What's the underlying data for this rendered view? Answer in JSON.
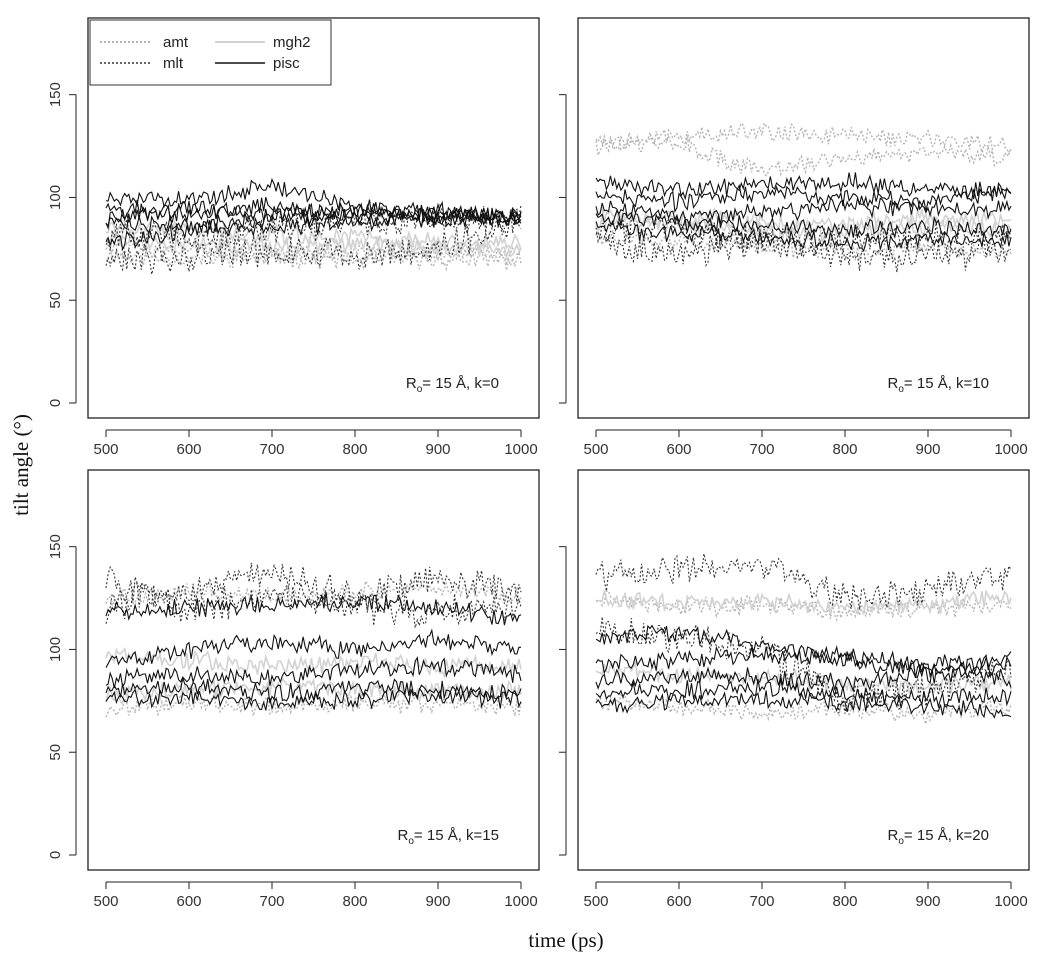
{
  "figure": {
    "ylabel": "tilt angle (°)",
    "xlabel": "time (ps)"
  },
  "legend": {
    "items": [
      {
        "label": "amt",
        "color": "#b4b4b4",
        "style": "dotted"
      },
      {
        "label": "mgh2",
        "color": "#d2d2d2",
        "style": "solid"
      },
      {
        "label": "mlt",
        "color": "#333333",
        "style": "dotted"
      },
      {
        "label": "pisc",
        "color": "#111111",
        "style": "solid"
      }
    ]
  },
  "chart_data": [
    {
      "type": "line",
      "panel": "top-left",
      "annotation": {
        "r": "R",
        "sub": "o",
        "rest": "= 15 Å, k=0"
      },
      "xlim": [
        500,
        1000
      ],
      "ylim": [
        0,
        180
      ],
      "xticks": [
        "500",
        "600",
        "700",
        "800",
        "900",
        "1000"
      ],
      "yticks": [
        "0",
        "50",
        "100",
        "150"
      ],
      "series": [
        {
          "group": "amt",
          "x": [
            500,
            600,
            700,
            800,
            900,
            1000
          ],
          "y": [
            72,
            70,
            71,
            69,
            70,
            69
          ]
        },
        {
          "group": "amt",
          "x": [
            500,
            600,
            700,
            800,
            900,
            1000
          ],
          "y": [
            76,
            75,
            72,
            74,
            73,
            72
          ]
        },
        {
          "group": "mgh2",
          "x": [
            500,
            600,
            700,
            800,
            900,
            1000
          ],
          "y": [
            80,
            78,
            76,
            77,
            75,
            74
          ]
        },
        {
          "group": "mgh2",
          "x": [
            500,
            600,
            700,
            800,
            900,
            1000
          ],
          "y": [
            85,
            84,
            82,
            80,
            79,
            78
          ]
        },
        {
          "group": "mlt",
          "x": [
            500,
            600,
            700,
            800,
            900,
            1000
          ],
          "y": [
            68,
            72,
            74,
            72,
            75,
            92
          ]
        },
        {
          "group": "mlt",
          "x": [
            500,
            600,
            700,
            800,
            900,
            1000
          ],
          "y": [
            82,
            80,
            85,
            88,
            90,
            88
          ]
        },
        {
          "group": "pisc",
          "x": [
            500,
            600,
            700,
            800,
            900,
            1000
          ],
          "y": [
            100,
            98,
            105,
            95,
            93,
            90
          ]
        },
        {
          "group": "pisc",
          "x": [
            500,
            600,
            700,
            800,
            900,
            1000
          ],
          "y": [
            95,
            92,
            96,
            90,
            92,
            91
          ]
        },
        {
          "group": "pisc",
          "x": [
            500,
            600,
            700,
            800,
            900,
            1000
          ],
          "y": [
            90,
            95,
            92,
            94,
            91,
            90
          ]
        },
        {
          "group": "pisc",
          "x": [
            500,
            600,
            700,
            800,
            900,
            1000
          ],
          "y": [
            88,
            86,
            90,
            92,
            89,
            91
          ]
        },
        {
          "group": "pisc",
          "x": [
            500,
            600,
            700,
            800,
            900,
            1000
          ],
          "y": [
            78,
            84,
            86,
            88,
            90,
            92
          ]
        }
      ]
    },
    {
      "type": "line",
      "panel": "top-right",
      "annotation": {
        "r": "R",
        "sub": "o",
        "rest": "= 15 Å, k=10"
      },
      "xlim": [
        500,
        1000
      ],
      "ylim": [
        0,
        180
      ],
      "xticks": [
        "500",
        "600",
        "700",
        "800",
        "900",
        "1000"
      ],
      "yticks": [
        "0",
        "50",
        "100",
        "150"
      ],
      "series": [
        {
          "group": "amt",
          "x": [
            500,
            600,
            700,
            800,
            900,
            1000
          ],
          "y": [
            125,
            130,
            132,
            130,
            128,
            126
          ]
        },
        {
          "group": "amt",
          "x": [
            500,
            600,
            700,
            800,
            900,
            1000
          ],
          "y": [
            128,
            126,
            112,
            120,
            122,
            120
          ]
        },
        {
          "group": "amt",
          "x": [
            500,
            600,
            700,
            800,
            900,
            1000
          ],
          "y": [
            80,
            78,
            76,
            74,
            75,
            73
          ]
        },
        {
          "group": "mgh2",
          "x": [
            500,
            600,
            700,
            800,
            900,
            1000
          ],
          "y": [
            88,
            86,
            84,
            82,
            86,
            85
          ]
        },
        {
          "group": "mgh2",
          "x": [
            500,
            600,
            700,
            800,
            900,
            1000
          ],
          "y": [
            92,
            90,
            88,
            86,
            90,
            88
          ]
        },
        {
          "group": "mlt",
          "x": [
            500,
            600,
            700,
            800,
            900,
            1000
          ],
          "y": [
            78,
            72,
            80,
            70,
            72,
            74
          ]
        },
        {
          "group": "mlt",
          "x": [
            500,
            600,
            700,
            800,
            900,
            1000
          ],
          "y": [
            85,
            84,
            80,
            78,
            82,
            80
          ]
        },
        {
          "group": "pisc",
          "x": [
            500,
            600,
            700,
            800,
            900,
            1000
          ],
          "y": [
            108,
            104,
            106,
            108,
            104,
            103
          ]
        },
        {
          "group": "pisc",
          "x": [
            500,
            600,
            700,
            800,
            900,
            1000
          ],
          "y": [
            100,
            98,
            102,
            100,
            98,
            104
          ]
        },
        {
          "group": "pisc",
          "x": [
            500,
            600,
            700,
            800,
            900,
            1000
          ],
          "y": [
            95,
            90,
            92,
            96,
            94,
            95
          ]
        },
        {
          "group": "pisc",
          "x": [
            500,
            600,
            700,
            800,
            900,
            1000
          ],
          "y": [
            90,
            88,
            86,
            84,
            86,
            84
          ]
        },
        {
          "group": "pisc",
          "x": [
            500,
            600,
            700,
            800,
            900,
            1000
          ],
          "y": [
            85,
            82,
            80,
            78,
            80,
            78
          ]
        }
      ]
    },
    {
      "type": "line",
      "panel": "bottom-left",
      "annotation": {
        "r": "R",
        "sub": "o",
        "rest": "= 15 Å, k=15"
      },
      "xlim": [
        500,
        1000
      ],
      "ylim": [
        0,
        180
      ],
      "xticks": [
        "500",
        "600",
        "700",
        "800",
        "900",
        "1000"
      ],
      "yticks": [
        "0",
        "50",
        "100",
        "150"
      ],
      "series": [
        {
          "group": "amt",
          "x": [
            500,
            600,
            700,
            800,
            900,
            1000
          ],
          "y": [
            125,
            128,
            126,
            128,
            130,
            126
          ]
        },
        {
          "group": "amt",
          "x": [
            500,
            600,
            700,
            800,
            900,
            1000
          ],
          "y": [
            72,
            74,
            72,
            73,
            74,
            72
          ]
        },
        {
          "group": "mgh2",
          "x": [
            500,
            600,
            700,
            800,
            900,
            1000
          ],
          "y": [
            78,
            80,
            82,
            80,
            79,
            80
          ]
        },
        {
          "group": "mgh2",
          "x": [
            500,
            600,
            700,
            800,
            900,
            1000
          ],
          "y": [
            98,
            95,
            92,
            94,
            92,
            93
          ]
        },
        {
          "group": "mlt",
          "x": [
            500,
            600,
            700,
            800,
            900,
            1000
          ],
          "y": [
            120,
            130,
            138,
            125,
            135,
            128
          ]
        },
        {
          "group": "mlt",
          "x": [
            500,
            600,
            700,
            800,
            900,
            1000
          ],
          "y": [
            135,
            118,
            128,
            120,
            118,
            122
          ]
        },
        {
          "group": "pisc",
          "x": [
            500,
            600,
            700,
            800,
            900,
            1000
          ],
          "y": [
            118,
            120,
            122,
            124,
            120,
            115
          ]
        },
        {
          "group": "pisc",
          "x": [
            500,
            600,
            700,
            800,
            900,
            1000
          ],
          "y": [
            95,
            100,
            104,
            100,
            105,
            100
          ]
        },
        {
          "group": "pisc",
          "x": [
            500,
            600,
            700,
            800,
            900,
            1000
          ],
          "y": [
            85,
            88,
            86,
            90,
            92,
            88
          ]
        },
        {
          "group": "pisc",
          "x": [
            500,
            600,
            700,
            800,
            900,
            1000
          ],
          "y": [
            80,
            82,
            78,
            82,
            80,
            78
          ]
        },
        {
          "group": "pisc",
          "x": [
            500,
            600,
            700,
            800,
            900,
            1000
          ],
          "y": [
            78,
            76,
            74,
            76,
            78,
            76
          ]
        }
      ]
    },
    {
      "type": "line",
      "panel": "bottom-right",
      "annotation": {
        "r": "R",
        "sub": "o",
        "rest": "= 15 Å, k=20"
      },
      "xlim": [
        500,
        1000
      ],
      "ylim": [
        0,
        180
      ],
      "xticks": [
        "500",
        "600",
        "700",
        "800",
        "900",
        "1000"
      ],
      "yticks": [
        "0",
        "50",
        "100",
        "150"
      ],
      "series": [
        {
          "group": "amt",
          "x": [
            500,
            600,
            700,
            800,
            900,
            1000
          ],
          "y": [
            125,
            120,
            122,
            118,
            120,
            122
          ]
        },
        {
          "group": "amt",
          "x": [
            500,
            600,
            700,
            800,
            900,
            1000
          ],
          "y": [
            75,
            72,
            70,
            72,
            68,
            72
          ]
        },
        {
          "group": "mgh2",
          "x": [
            500,
            600,
            700,
            800,
            900,
            1000
          ],
          "y": [
            125,
            122,
            124,
            120,
            122,
            125
          ]
        },
        {
          "group": "mgh2",
          "x": [
            500,
            600,
            700,
            800,
            900,
            1000
          ],
          "y": [
            90,
            88,
            86,
            84,
            82,
            84
          ]
        },
        {
          "group": "mlt",
          "x": [
            500,
            600,
            700,
            800,
            900,
            1000
          ],
          "y": [
            135,
            140,
            142,
            125,
            130,
            135
          ]
        },
        {
          "group": "mlt",
          "x": [
            500,
            600,
            700,
            800,
            900,
            1000
          ],
          "y": [
            110,
            105,
            100,
            75,
            80,
            90
          ]
        },
        {
          "group": "pisc",
          "x": [
            500,
            600,
            700,
            800,
            900,
            1000
          ],
          "y": [
            105,
            108,
            102,
            96,
            92,
            95
          ]
        },
        {
          "group": "pisc",
          "x": [
            500,
            600,
            700,
            800,
            900,
            1000
          ],
          "y": [
            92,
            95,
            98,
            95,
            90,
            92
          ]
        },
        {
          "group": "pisc",
          "x": [
            500,
            600,
            700,
            800,
            900,
            1000
          ],
          "y": [
            85,
            88,
            86,
            84,
            88,
            86
          ]
        },
        {
          "group": "pisc",
          "x": [
            500,
            600,
            700,
            800,
            900,
            1000
          ],
          "y": [
            78,
            80,
            82,
            78,
            76,
            78
          ]
        },
        {
          "group": "pisc",
          "x": [
            500,
            600,
            700,
            800,
            900,
            1000
          ],
          "y": [
            72,
            74,
            76,
            74,
            72,
            70
          ]
        }
      ]
    }
  ]
}
